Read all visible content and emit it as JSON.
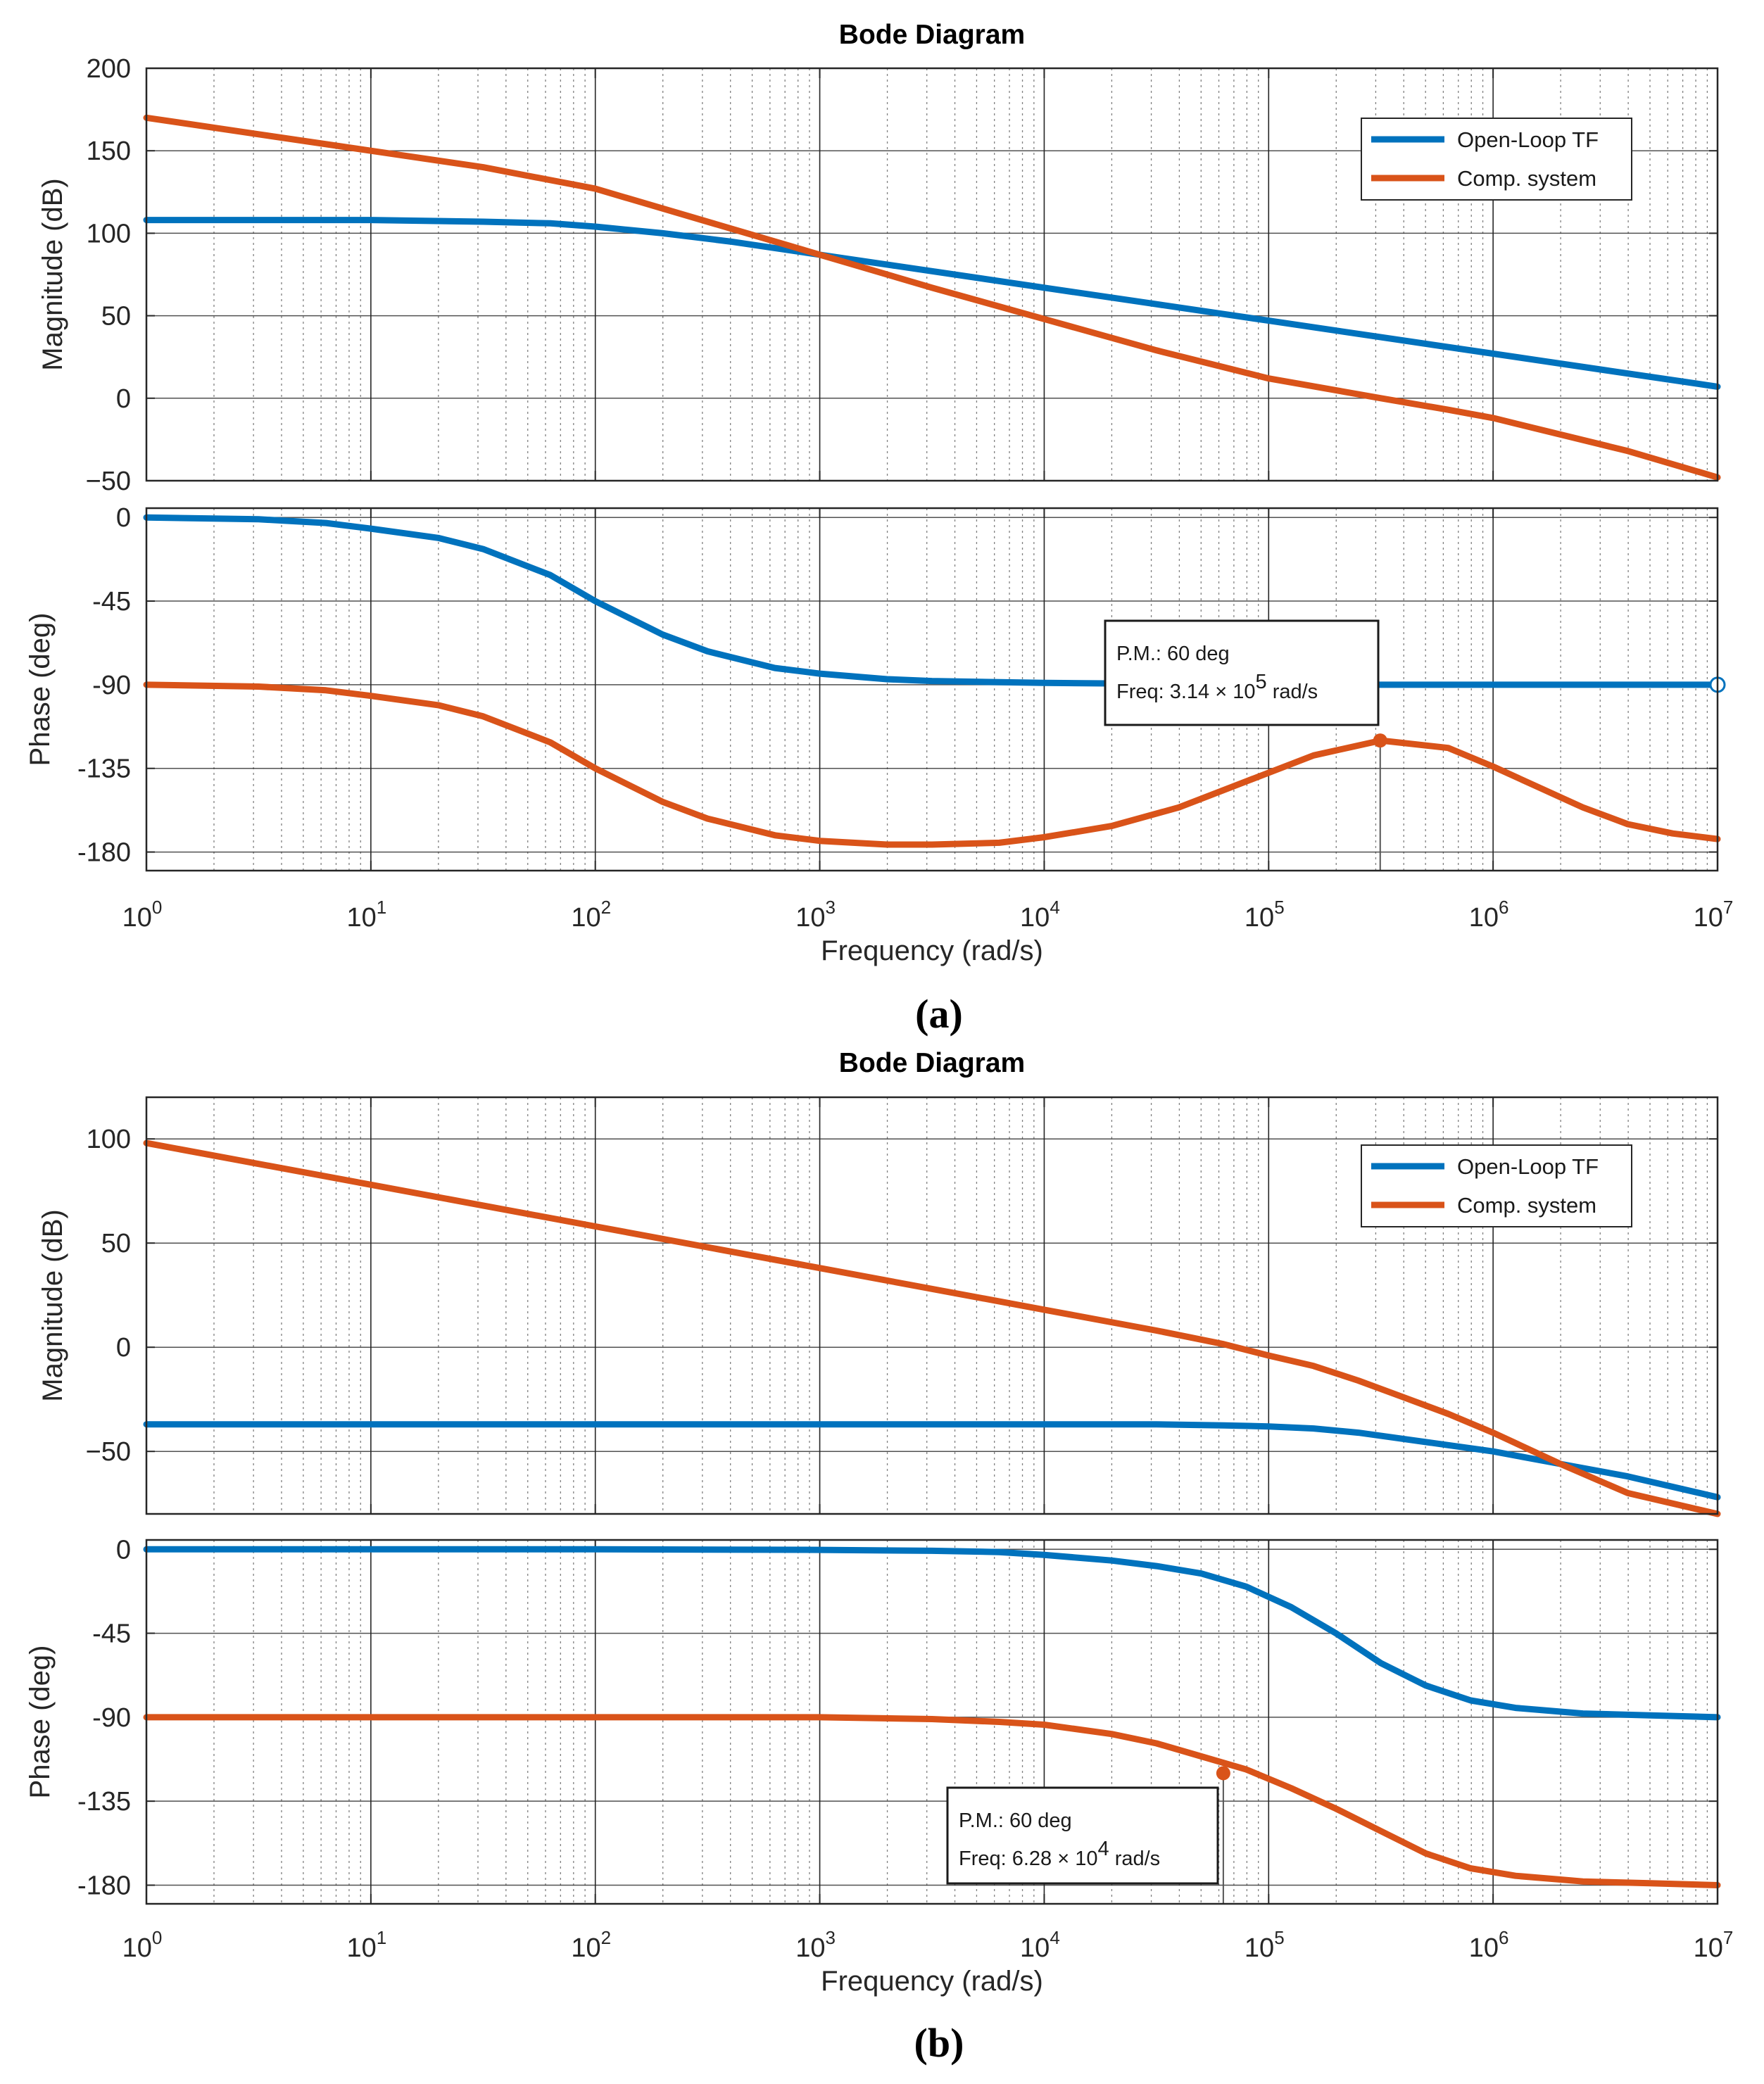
{
  "chart_data": [
    {
      "type": "line",
      "panel_label": "(a)",
      "title": "Bode Diagram",
      "xlabel": "Frequency  (rad/s)",
      "xscale": "log",
      "xlim": [
        1,
        10000000
      ],
      "x_ticks": [
        {
          "base": "10",
          "exp": "0"
        },
        {
          "base": "10",
          "exp": "1"
        },
        {
          "base": "10",
          "exp": "2"
        },
        {
          "base": "10",
          "exp": "3"
        },
        {
          "base": "10",
          "exp": "4"
        },
        {
          "base": "10",
          "exp": "5"
        },
        {
          "base": "10",
          "exp": "6"
        },
        {
          "base": "10",
          "exp": "7"
        }
      ],
      "legend": {
        "position": "top-right",
        "entries": [
          "Open-Loop TF",
          "Comp. system"
        ]
      },
      "colors": {
        "Open-Loop TF": "#0072BD",
        "Comp. system": "#D95319"
      },
      "magnitude": {
        "ylabel": "Magnitude (dB)",
        "ylim": [
          -50,
          200
        ],
        "yticks": [
          200,
          150,
          100,
          50,
          0,
          -50
        ],
        "ytick_labels": [
          "200",
          "150",
          "100",
          "50",
          "0",
          "−50"
        ],
        "series": [
          {
            "name": "Open-Loop TF",
            "log10_w": [
              0,
              0.5,
              1,
              1.5,
              1.8,
              2,
              2.3,
              2.6,
              3,
              3.5,
              4,
              4.5,
              5,
              5.5,
              6,
              6.5,
              7
            ],
            "values": [
              108,
              108,
              108,
              107,
              106,
              104,
              100,
              95,
              87,
              77,
              67,
              57,
              47,
              37,
              27,
              17,
              7
            ]
          },
          {
            "name": "Comp. system",
            "log10_w": [
              0,
              0.5,
              1,
              1.5,
              2,
              2.5,
              3,
              3.5,
              4,
              4.5,
              5,
              5.5,
              5.8,
              6,
              6.3,
              6.6,
              7
            ],
            "values": [
              170,
              160,
              150,
              140,
              127,
              107,
              87,
              67,
              48,
              29,
              12,
              0,
              -7,
              -12,
              -22,
              -32,
              -48
            ]
          }
        ]
      },
      "phase": {
        "ylabel": "Phase (deg)",
        "ylim": [
          -190,
          5
        ],
        "yticks": [
          0,
          -45,
          -90,
          -135,
          -180
        ],
        "ytick_labels": [
          "0",
          "-45",
          "-90",
          "-135",
          "-180"
        ],
        "series": [
          {
            "name": "Open-Loop TF",
            "log10_w": [
              0,
              0.5,
              0.8,
              1,
              1.3,
              1.5,
              1.8,
              2,
              2.3,
              2.5,
              2.8,
              3,
              3.3,
              3.5,
              4,
              5,
              6,
              7
            ],
            "values": [
              0,
              -1,
              -3,
              -6,
              -11,
              -17,
              -31,
              -45,
              -63,
              -72,
              -81,
              -84,
              -87,
              -88,
              -89,
              -90,
              -90,
              -90
            ]
          },
          {
            "name": "Comp. system",
            "log10_w": [
              0,
              0.5,
              0.8,
              1,
              1.3,
              1.5,
              1.8,
              2,
              2.3,
              2.5,
              2.8,
              3,
              3.3,
              3.5,
              3.8,
              4,
              4.3,
              4.6,
              4.9,
              5.2,
              5.5,
              5.8,
              6,
              6.2,
              6.4,
              6.6,
              6.8,
              7
            ],
            "values": [
              -90,
              -91,
              -93,
              -96,
              -101,
              -107,
              -121,
              -135,
              -153,
              -162,
              -171,
              -174,
              -176,
              -176,
              -175,
              -172,
              -166,
              -156,
              -142,
              -128,
              -120,
              -124,
              -134,
              -145,
              -156,
              -165,
              -170,
              -173
            ]
          }
        ],
        "marker": {
          "series": "Comp. system",
          "log10_w": 5.497,
          "value": -120
        },
        "open_marker": {
          "series": "Open-Loop TF",
          "log10_w": 7,
          "value": -90
        }
      },
      "annotation": {
        "line1": "P.M.: 60 deg",
        "line2_prefix": "Freq: 3.14 × 10",
        "line2_exp": "5",
        "line2_suffix": " rad/s"
      }
    },
    {
      "type": "line",
      "panel_label": "(b)",
      "title": "Bode Diagram",
      "xlabel": "Frequency  (rad/s)",
      "xscale": "log",
      "xlim": [
        1,
        10000000
      ],
      "x_ticks": [
        {
          "base": "10",
          "exp": "0"
        },
        {
          "base": "10",
          "exp": "1"
        },
        {
          "base": "10",
          "exp": "2"
        },
        {
          "base": "10",
          "exp": "3"
        },
        {
          "base": "10",
          "exp": "4"
        },
        {
          "base": "10",
          "exp": "5"
        },
        {
          "base": "10",
          "exp": "6"
        },
        {
          "base": "10",
          "exp": "7"
        }
      ],
      "legend": {
        "position": "top-right",
        "entries": [
          "Open-Loop TF",
          "Comp. system"
        ]
      },
      "colors": {
        "Open-Loop TF": "#0072BD",
        "Comp. system": "#D95319"
      },
      "magnitude": {
        "ylabel": "Magnitude (dB)",
        "ylim": [
          -80,
          120
        ],
        "yticks": [
          100,
          50,
          0,
          -50
        ],
        "ytick_labels": [
          "100",
          "50",
          "0",
          "−50"
        ],
        "series": [
          {
            "name": "Open-Loop TF",
            "log10_w": [
              0,
              1,
              2,
              3,
              4,
              4.5,
              4.8,
              5,
              5.2,
              5.4,
              5.6,
              5.8,
              6,
              6.3,
              6.6,
              7
            ],
            "values": [
              -37,
              -37,
              -37,
              -37,
              -37,
              -37,
              -37.5,
              -38,
              -39,
              -41,
              -44,
              -47,
              -50,
              -56,
              -62,
              -72
            ]
          },
          {
            "name": "Comp. system",
            "log10_w": [
              0,
              1,
              2,
              3,
              4,
              4.5,
              4.8,
              5,
              5.2,
              5.4,
              5.6,
              5.8,
              6,
              6.3,
              6.6,
              7
            ],
            "values": [
              98,
              78,
              58,
              38,
              18,
              8,
              1.5,
              -4,
              -9,
              -16,
              -24,
              -32,
              -41,
              -56,
              -70,
              -80
            ]
          }
        ]
      },
      "phase": {
        "ylabel": "Phase (deg)",
        "ylim": [
          -190,
          5
        ],
        "yticks": [
          0,
          -45,
          -90,
          -135,
          -180
        ],
        "ytick_labels": [
          "0",
          "-45",
          "-90",
          "-135",
          "-180"
        ],
        "series": [
          {
            "name": "Open-Loop TF",
            "log10_w": [
              0,
              1,
              2,
              3,
              3.5,
              3.8,
              4,
              4.3,
              4.5,
              4.7,
              4.9,
              5.1,
              5.3,
              5.5,
              5.7,
              5.9,
              6.1,
              6.4,
              6.7,
              7
            ],
            "values": [
              0,
              0,
              0,
              -0.3,
              -0.8,
              -1.5,
              -3,
              -6,
              -9,
              -13,
              -20,
              -31,
              -45,
              -61,
              -73,
              -81,
              -85,
              -88,
              -89,
              -90
            ]
          },
          {
            "name": "Comp. system",
            "log10_w": [
              0,
              1,
              2,
              3,
              3.5,
              3.8,
              4,
              4.3,
              4.5,
              4.7,
              4.9,
              5.1,
              5.3,
              5.5,
              5.7,
              5.9,
              6.1,
              6.4,
              6.7,
              7
            ],
            "values": [
              -90,
              -90,
              -90,
              -90,
              -91,
              -92.5,
              -94,
              -99,
              -104,
              -111,
              -118,
              -128,
              -139,
              -151,
              -163,
              -171,
              -175,
              -178,
              -179,
              -180
            ]
          }
        ],
        "marker": {
          "series": "Comp. system",
          "log10_w": 4.798,
          "value": -120
        }
      },
      "annotation": {
        "line1": "P.M.: 60 deg",
        "line2_prefix": "Freq: 6.28 × 10",
        "line2_exp": "4",
        "line2_suffix": " rad/s"
      }
    }
  ]
}
